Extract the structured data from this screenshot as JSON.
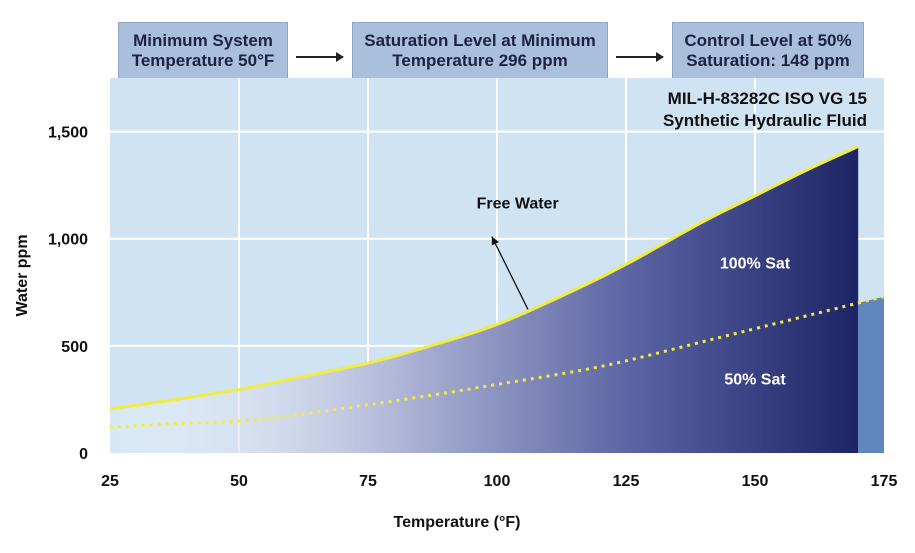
{
  "header": {
    "steps": [
      {
        "line1": "Minimum System",
        "line2": "Temperature 50°F"
      },
      {
        "line1": "Saturation Level at Minimum",
        "line2": "Temperature 296 ppm"
      },
      {
        "line1": "Control Level at 50%",
        "line2": "Saturation: 148 ppm"
      }
    ]
  },
  "fluid": {
    "line1": "MIL-H-83282C ISO VG 15",
    "line2": "Synthetic Hydraulic Fluid"
  },
  "colors": {
    "plot_bg": "#cfe3f3",
    "grid": "#ffffff",
    "curve_100": "#f2ec3c",
    "curve_50": "#f2ec3c",
    "fill_dark": "#1c2466",
    "fill_light": "#ffffff",
    "fill_50_band": "#5f86bd"
  },
  "chart_data": {
    "type": "area",
    "xlabel": "Temperature (°F)",
    "ylabel": "Water ppm",
    "xlim": [
      25,
      175
    ],
    "ylim": [
      0,
      1750
    ],
    "x_ticks": [
      25,
      50,
      75,
      100,
      125,
      150,
      175
    ],
    "x_tick_labels": [
      "25",
      "50",
      "75",
      "100",
      "125",
      "150",
      "175"
    ],
    "y_ticks": [
      0,
      500,
      1000,
      1500
    ],
    "y_tick_labels": [
      "0",
      "500",
      "1,000",
      "1,500"
    ],
    "grid": true,
    "series": [
      {
        "name": "100% Sat",
        "x": [
          25,
          35,
          50,
          60,
          75,
          85,
          100,
          115,
          125,
          140,
          150,
          160,
          170
        ],
        "y": [
          205,
          240,
          296,
          345,
          420,
          485,
          600,
          760,
          880,
          1080,
          1200,
          1320,
          1430
        ]
      },
      {
        "name": "50% Sat",
        "x": [
          25,
          40,
          50,
          60,
          75,
          90,
          100,
          115,
          125,
          140,
          150,
          160,
          175
        ],
        "y": [
          120,
          140,
          148,
          175,
          225,
          280,
          320,
          380,
          430,
          520,
          580,
          640,
          730
        ]
      }
    ],
    "annotations": [
      {
        "text": "Free Water",
        "x": 104,
        "y": 1140,
        "arrow_from": [
          106,
          670
        ],
        "arrow_to": [
          99,
          1010
        ]
      },
      {
        "text": "100% Sat",
        "x": 150,
        "y": 860
      },
      {
        "text": "50% Sat",
        "x": 150,
        "y": 320
      }
    ]
  }
}
